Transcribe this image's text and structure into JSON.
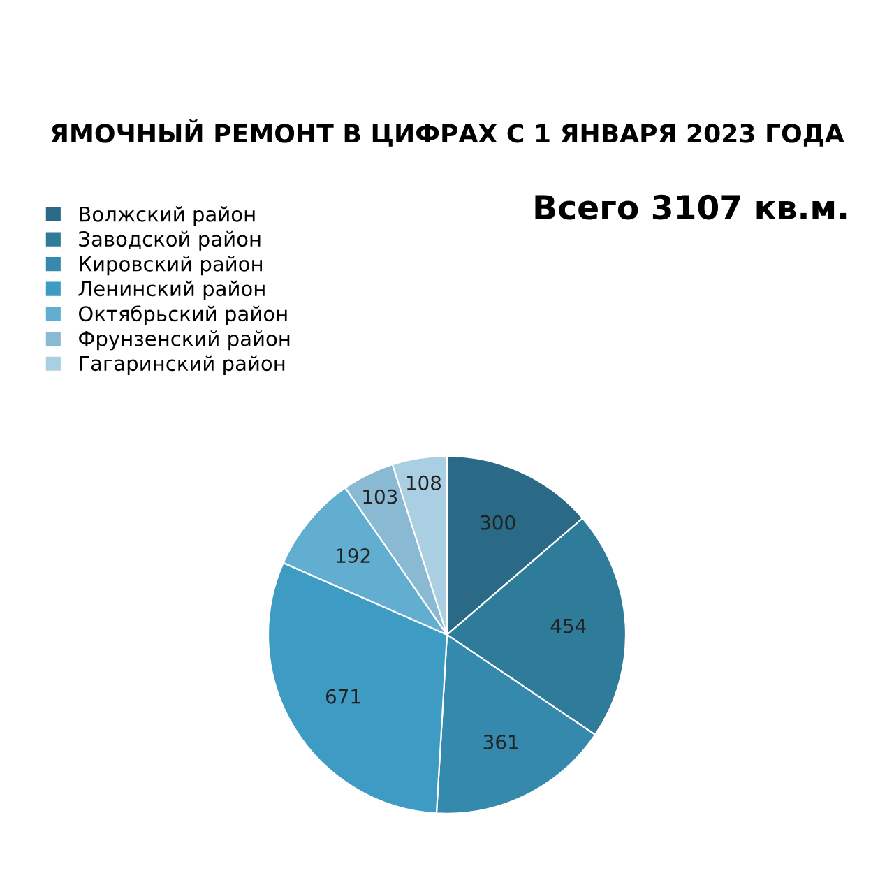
{
  "chart_data": {
    "type": "pie",
    "title": "ЯМОЧНЫЙ РЕМОНТ В ЦИФРАХ С 1 ЯНВАРЯ 2023 ГОДА",
    "categories": [
      "Волжский район",
      "Заводской район",
      "Кировский район",
      "Ленинский район",
      "Октябрьский район",
      "Фрунзенский район",
      "Гагаринский район"
    ],
    "values": [
      300,
      454,
      361,
      671,
      192,
      103,
      108
    ],
    "colors": [
      "#2a6a86",
      "#2f7b9a",
      "#3589ac",
      "#3e9cc4",
      "#62aed0",
      "#8ab9d4",
      "#aacfe3"
    ],
    "data_labels": true,
    "legend": "top left",
    "annotations": [
      "Всего 3107 кв.м."
    ]
  }
}
